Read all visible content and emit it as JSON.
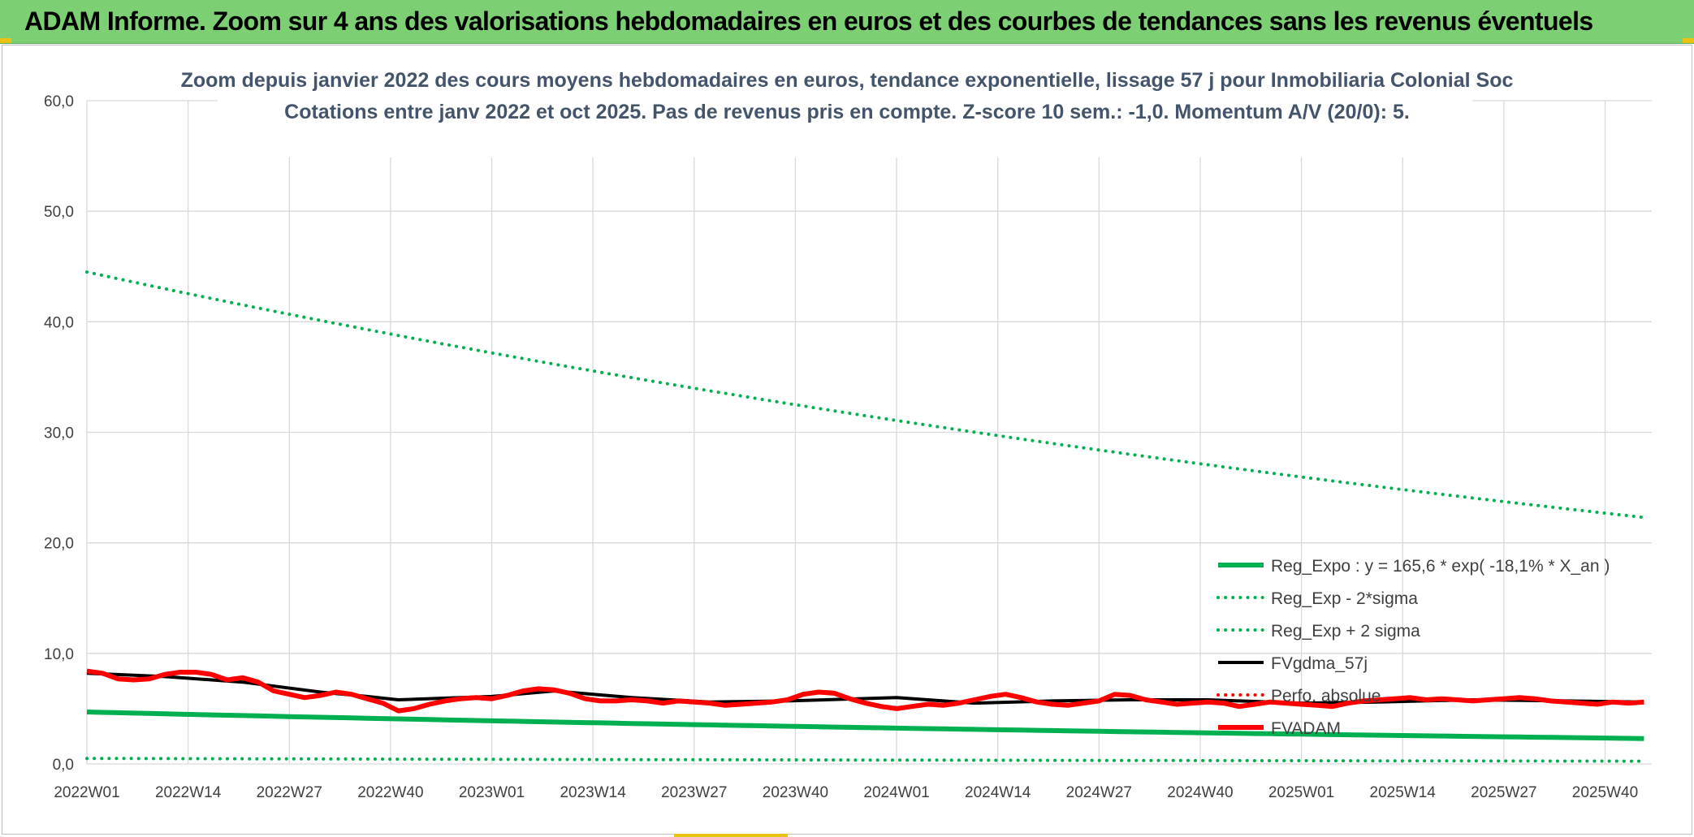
{
  "header": {
    "title": "ADAM Informe. Zoom sur 4 ans des valorisations hebdomadaires en euros et des courbes de tendances sans les revenus éventuels"
  },
  "colors": {
    "header_bg": "#7dcf74",
    "green": "#00b050",
    "red": "#ff0000",
    "black": "#000000",
    "grid": "#d9d9d9"
  },
  "chart_data": {
    "type": "line",
    "title_line1": "Zoom depuis janvier 2022 des cours moyens hebdomadaires en euros, tendance exponentielle, lissage 57 j pour Inmobiliaria Colonial Soc",
    "title_line2": "Cotations entre janv 2022 et oct 2025. Pas de revenus pris en compte. Z-score 10 sem.: -1,0. Momentum A/V (20/0): 5.",
    "xlabel": "",
    "ylabel": "",
    "ylim": [
      0,
      60
    ],
    "yticks": [
      "0,0",
      "10,0",
      "20,0",
      "30,0",
      "40,0",
      "50,0",
      "60,0"
    ],
    "xticks": [
      "2022W01",
      "2022W14",
      "2022W27",
      "2022W40",
      "2023W01",
      "2023W14",
      "2023W27",
      "2023W40",
      "2024W01",
      "2024W14",
      "2024W27",
      "2024W40",
      "2025W01",
      "2025W14",
      "2025W27",
      "2025W40"
    ],
    "n_weeks": 202,
    "grid": true,
    "legend_position": "right",
    "series": [
      {
        "name": "Reg_Expo : y = 165,6 * exp( -18,1% *  X_an )",
        "style": "solid-thick",
        "color": "#00b050",
        "x": [
          0,
          200
        ],
        "values": [
          4.7,
          2.3
        ]
      },
      {
        "name": "Reg_Exp - 2*sigma",
        "style": "dotted",
        "color": "#00b050",
        "x": [
          0,
          200
        ],
        "values": [
          0.5,
          0.25
        ]
      },
      {
        "name": "Reg_Exp + 2 sigma",
        "style": "dotted",
        "color": "#00b050",
        "x": [
          0,
          200
        ],
        "values": [
          44.5,
          22.3
        ]
      },
      {
        "name": "FVgdma_57j",
        "style": "solid",
        "color": "#000000",
        "x": [
          0,
          10,
          20,
          30,
          36,
          40,
          52,
          60,
          70,
          80,
          90,
          104,
          114,
          124,
          134,
          144,
          156,
          166,
          178,
          190,
          200
        ],
        "values": [
          8.2,
          7.9,
          7.4,
          6.5,
          6.1,
          5.8,
          6.1,
          6.6,
          6.0,
          5.6,
          5.7,
          6.0,
          5.5,
          5.7,
          5.8,
          5.8,
          5.5,
          5.6,
          5.8,
          5.7,
          5.6
        ]
      },
      {
        "name": "Perfo. absolue",
        "style": "dotted",
        "color": "#ff0000",
        "x": [],
        "values": []
      },
      {
        "name": "FVADAM",
        "style": "solid-thick",
        "color": "#ff0000",
        "x": [
          0,
          2,
          4,
          6,
          8,
          10,
          12,
          14,
          16,
          18,
          20,
          22,
          24,
          26,
          28,
          30,
          32,
          34,
          36,
          38,
          40,
          42,
          44,
          46,
          48,
          50,
          52,
          54,
          56,
          58,
          60,
          62,
          64,
          66,
          68,
          70,
          72,
          74,
          76,
          78,
          80,
          82,
          84,
          86,
          88,
          90,
          92,
          94,
          96,
          98,
          100,
          102,
          104,
          106,
          108,
          110,
          112,
          114,
          116,
          118,
          120,
          122,
          124,
          126,
          128,
          130,
          132,
          134,
          136,
          138,
          140,
          142,
          144,
          146,
          148,
          150,
          152,
          154,
          156,
          158,
          160,
          162,
          164,
          166,
          168,
          170,
          172,
          174,
          176,
          178,
          180,
          182,
          184,
          186,
          188,
          190,
          192,
          194,
          196,
          198,
          200
        ],
        "values": [
          8.4,
          8.2,
          7.7,
          7.6,
          7.7,
          8.1,
          8.3,
          8.3,
          8.1,
          7.6,
          7.8,
          7.4,
          6.6,
          6.3,
          6.0,
          6.2,
          6.5,
          6.3,
          5.9,
          5.5,
          4.8,
          5.0,
          5.4,
          5.7,
          5.9,
          6.0,
          5.9,
          6.2,
          6.6,
          6.8,
          6.7,
          6.4,
          5.9,
          5.7,
          5.7,
          5.8,
          5.7,
          5.5,
          5.7,
          5.6,
          5.5,
          5.3,
          5.4,
          5.5,
          5.6,
          5.8,
          6.3,
          6.5,
          6.4,
          5.9,
          5.5,
          5.2,
          5.0,
          5.2,
          5.4,
          5.3,
          5.5,
          5.8,
          6.1,
          6.3,
          6.0,
          5.6,
          5.4,
          5.3,
          5.5,
          5.7,
          6.3,
          6.2,
          5.8,
          5.6,
          5.4,
          5.5,
          5.6,
          5.5,
          5.2,
          5.4,
          5.6,
          5.5,
          5.4,
          5.3,
          5.2,
          5.5,
          5.7,
          5.8,
          5.9,
          6.0,
          5.8,
          5.9,
          5.8,
          5.7,
          5.8,
          5.9,
          6.0,
          5.9,
          5.7,
          5.6,
          5.5,
          5.4,
          5.6,
          5.5,
          5.6
        ]
      }
    ]
  }
}
